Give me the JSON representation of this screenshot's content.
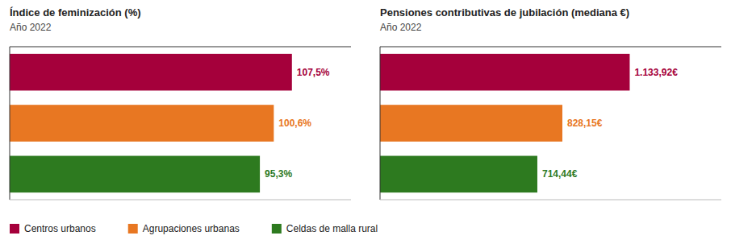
{
  "chart_data": [
    {
      "type": "bar",
      "orientation": "horizontal",
      "title": "Índice de feminización (%)",
      "subtitle": "Año 2022",
      "categories": [
        "Centros urbanos",
        "Agrupaciones urbanas",
        "Celdas de malla rural"
      ],
      "values": [
        107.5,
        100.6,
        95.3
      ],
      "value_labels": [
        "107,5%",
        "100,6%",
        "95,3%"
      ],
      "colors": [
        "#a5003b",
        "#e87722",
        "#2d7a1f"
      ],
      "xlim": [
        0,
        130
      ],
      "data_labels": true,
      "tick_labels": false,
      "grid": false,
      "legend": "bottom"
    },
    {
      "type": "bar",
      "orientation": "horizontal",
      "title": "Pensiones contributivas de jubilación (mediana €)",
      "subtitle": "Año 2022",
      "categories": [
        "Centros urbanos",
        "Agrupaciones urbanas",
        "Celdas de malla rural"
      ],
      "values": [
        1133.92,
        828.15,
        714.44
      ],
      "value_labels": [
        "1.133,92€",
        "828,15€",
        "714,44€"
      ],
      "colors": [
        "#a5003b",
        "#e87722",
        "#2d7a1f"
      ],
      "xlim": [
        0,
        1550
      ],
      "data_labels": true,
      "tick_labels": false,
      "grid": false
    }
  ]
}
